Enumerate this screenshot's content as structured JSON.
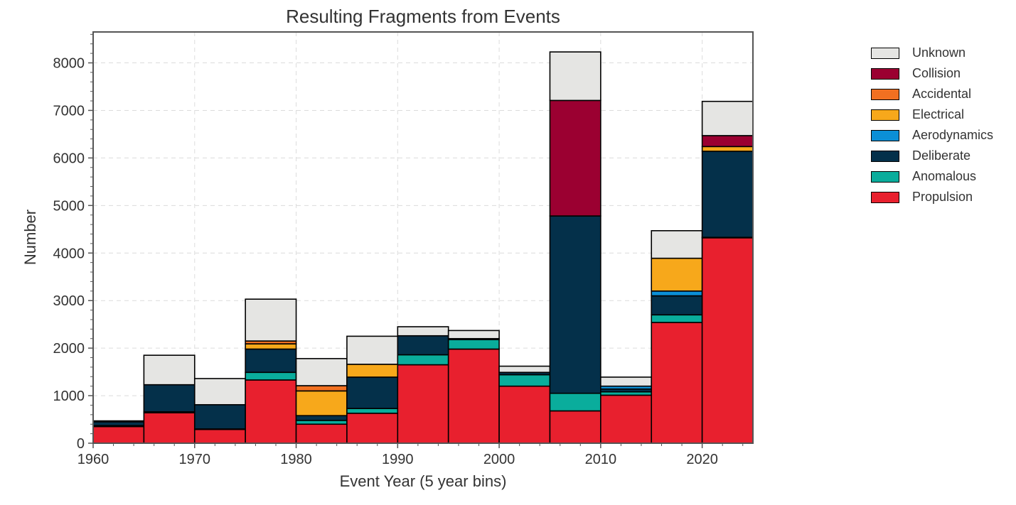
{
  "chart_data": {
    "type": "bar",
    "stacked": true,
    "title": "Resulting Fragments from Events",
    "xlabel": "Event Year (5 year bins)",
    "ylabel": "Number",
    "xlim": [
      1960,
      2025
    ],
    "ylim": [
      0,
      8650
    ],
    "x_ticks": [
      "1960",
      "1970",
      "1980",
      "1990",
      "2000",
      "2010",
      "2020"
    ],
    "y_ticks": [
      "0",
      "1000",
      "2000",
      "3000",
      "4000",
      "5000",
      "6000",
      "7000",
      "8000"
    ],
    "grid": true,
    "legend_position": "right",
    "bins": [
      1960,
      1965,
      1970,
      1975,
      1980,
      1985,
      1990,
      1995,
      2000,
      2005,
      2010,
      2015,
      2020
    ],
    "bin_width": 5,
    "series": [
      {
        "name": "Propulsion",
        "color": "#e8202e",
        "values": [
          350,
          640,
          290,
          1330,
          400,
          630,
          1650,
          1980,
          1200,
          680,
          1010,
          2540,
          4320
        ]
      },
      {
        "name": "Anomalous",
        "color": "#0aad9c",
        "values": [
          20,
          20,
          10,
          160,
          80,
          100,
          210,
          200,
          240,
          370,
          70,
          160,
          10
        ]
      },
      {
        "name": "Deliberate",
        "color": "#04304a",
        "values": [
          80,
          570,
          510,
          490,
          100,
          660,
          400,
          20,
          50,
          3730,
          60,
          400,
          1810
        ]
      },
      {
        "name": "Aerodynamics",
        "color": "#0b8fd6",
        "values": [
          0,
          0,
          0,
          0,
          0,
          0,
          0,
          0,
          0,
          0,
          60,
          100,
          0
        ]
      },
      {
        "name": "Electrical",
        "color": "#f7a81b",
        "values": [
          0,
          0,
          0,
          110,
          520,
          270,
          0,
          0,
          0,
          0,
          0,
          690,
          100
        ]
      },
      {
        "name": "Accidental",
        "color": "#f17021",
        "values": [
          0,
          0,
          0,
          60,
          110,
          0,
          0,
          0,
          0,
          0,
          0,
          0,
          0
        ]
      },
      {
        "name": "Collision",
        "color": "#9b0031",
        "values": [
          0,
          0,
          0,
          0,
          0,
          0,
          0,
          0,
          0,
          2430,
          0,
          0,
          230
        ]
      },
      {
        "name": "Unknown",
        "color": "#e5e5e3",
        "values": [
          20,
          620,
          550,
          880,
          570,
          590,
          190,
          170,
          130,
          1020,
          190,
          580,
          720
        ]
      }
    ],
    "legend_order": [
      "Unknown",
      "Collision",
      "Accidental",
      "Electrical",
      "Aerodynamics",
      "Deliberate",
      "Anomalous",
      "Propulsion"
    ]
  }
}
